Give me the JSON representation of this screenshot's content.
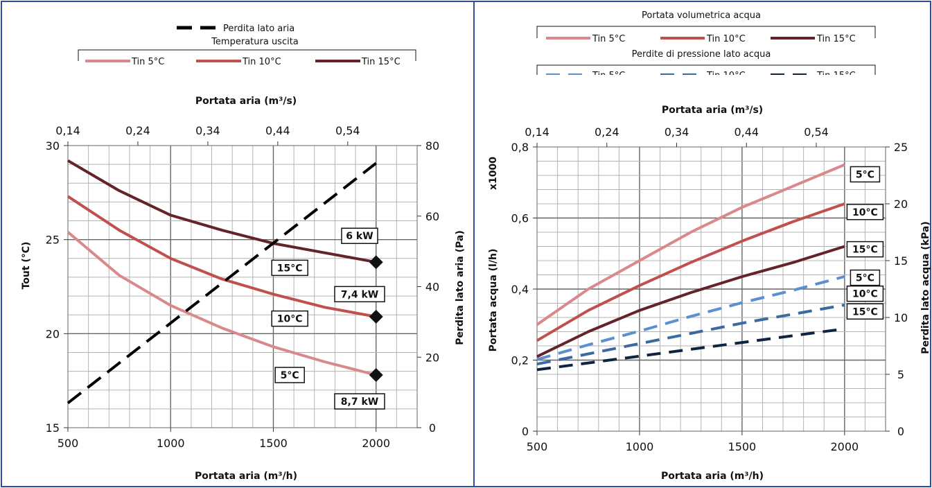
{
  "colors": {
    "frame": "#2f4f9a",
    "grid_minor": "#b3b3b3",
    "grid_major": "#666666",
    "tin5": "#d9898b",
    "tin10": "#c0504d",
    "tin15": "#632328",
    "pressure5": "#5b8fd0",
    "pressure10": "#3b6aa0",
    "pressure15": "#0f2440",
    "airloss": "#000000"
  },
  "chart_data": [
    {
      "type": "line",
      "legend": {
        "airloss_label": "Perdita lato aria",
        "group_title": "Temperatura uscita",
        "items": [
          "Tin 5°C",
          "Tin 10°C",
          "Tin 15°C"
        ]
      },
      "xlabel": "Portata aria (m³/h)",
      "x2label": "Portata aria (m³/s)",
      "ylabel": "Tout (°C)",
      "y2label": "Perdita lato aria (Pa)",
      "xlim": [
        500,
        2200
      ],
      "xticks": [
        "500",
        "1000",
        "1500",
        "2000"
      ],
      "x2ticks": [
        "0,14",
        "0,24",
        "0,34",
        "0,44",
        "0,54"
      ],
      "ylim": [
        15,
        30
      ],
      "yticks": [
        "15",
        "20",
        "25",
        "30"
      ],
      "y2lim": [
        0,
        80
      ],
      "y2ticks": [
        "0",
        "20",
        "40",
        "60",
        "80"
      ],
      "grid": true,
      "series": [
        {
          "name": "Tin 5°C",
          "axis": "y",
          "x": [
            500,
            750,
            1000,
            1250,
            1500,
            1750,
            2000
          ],
          "values": [
            25.4,
            23.1,
            21.5,
            20.3,
            19.3,
            18.5,
            17.8
          ]
        },
        {
          "name": "Tin 10°C",
          "axis": "y",
          "x": [
            500,
            750,
            1000,
            1250,
            1500,
            1750,
            2000
          ],
          "values": [
            27.3,
            25.5,
            24.0,
            22.9,
            22.1,
            21.4,
            20.9
          ]
        },
        {
          "name": "Tin 15°C",
          "axis": "y",
          "x": [
            500,
            750,
            1000,
            1250,
            1500,
            1750,
            2000
          ],
          "values": [
            29.2,
            27.6,
            26.3,
            25.5,
            24.8,
            24.3,
            23.8
          ]
        },
        {
          "name": "Perdita lato aria",
          "axis": "y2",
          "x": [
            500,
            2000
          ],
          "values": [
            7,
            75
          ]
        }
      ],
      "markers": [
        {
          "x": 2000,
          "y": 23.8
        },
        {
          "x": 2000,
          "y": 20.9
        },
        {
          "x": 2000,
          "y": 17.8
        }
      ],
      "annotations": [
        {
          "text": "6 kW",
          "x": 1920,
          "y": 25.2
        },
        {
          "text": "15°C",
          "x": 1580,
          "y": 23.5
        },
        {
          "text": "7,4 kW",
          "x": 1920,
          "y": 22.1
        },
        {
          "text": "10°C",
          "x": 1580,
          "y": 20.8
        },
        {
          "text": "5°C",
          "x": 1580,
          "y": 17.8
        },
        {
          "text": "8,7 kW",
          "x": 1920,
          "y": 16.4
        }
      ]
    },
    {
      "type": "line",
      "legend": {
        "group1_title": "Portata volumetrica acqua",
        "group1_items": [
          "Tin 5°C",
          "Tin 10°C",
          "Tin 15°C"
        ],
        "group2_title": "Perdite di pressione lato acqua",
        "group2_items": [
          "Tin 5°C",
          "Tin 10°C",
          "Tin 15°C"
        ]
      },
      "xlabel": "Portata aria (m³/h)",
      "x2label": "Portata aria (m³/s)",
      "ylabel": "Portata acqua (l/h)",
      "y_multiplier": "x1000",
      "y2label": "Perdita lato acqua (kPa)",
      "xlim": [
        500,
        2200
      ],
      "xticks": [
        "500",
        "1000",
        "1500",
        "2000"
      ],
      "x2ticks": [
        "0,14",
        "0,24",
        "0,34",
        "0,44",
        "0,54"
      ],
      "ylim": [
        0,
        0.8
      ],
      "yticks": [
        "0",
        "0,2",
        "0,4",
        "0,6",
        "0,8"
      ],
      "y2lim": [
        0,
        25
      ],
      "y2ticks": [
        "0",
        "5",
        "10",
        "15",
        "20",
        "25"
      ],
      "grid": true,
      "series": [
        {
          "name": "Tin 5°C",
          "group": "Portata volumetrica acqua",
          "axis": "y",
          "x": [
            500,
            750,
            1000,
            1250,
            1500,
            1750,
            2000
          ],
          "values": [
            0.3,
            0.4,
            0.48,
            0.56,
            0.63,
            0.69,
            0.75
          ]
        },
        {
          "name": "Tin 10°C",
          "group": "Portata volumetrica acqua",
          "axis": "y",
          "x": [
            500,
            750,
            1000,
            1250,
            1500,
            1750,
            2000
          ],
          "values": [
            0.255,
            0.34,
            0.41,
            0.475,
            0.535,
            0.59,
            0.64
          ]
        },
        {
          "name": "Tin 15°C",
          "group": "Portata volumetrica acqua",
          "axis": "y",
          "x": [
            500,
            750,
            1000,
            1250,
            1500,
            1750,
            2000
          ],
          "values": [
            0.21,
            0.28,
            0.34,
            0.39,
            0.435,
            0.475,
            0.52
          ]
        },
        {
          "name": "Tin 5°C",
          "group": "Perdite di pressione lato acqua",
          "axis": "y2",
          "x": [
            500,
            750,
            1000,
            1250,
            1500,
            1750,
            2000
          ],
          "values": [
            6.3,
            7.6,
            8.8,
            10.1,
            11.3,
            12.4,
            13.6
          ]
        },
        {
          "name": "Tin 10°C",
          "group": "Perdite di pressione lato acqua",
          "axis": "y2",
          "x": [
            500,
            750,
            1000,
            1250,
            1500,
            1750,
            2000
          ],
          "values": [
            5.9,
            6.8,
            7.7,
            8.6,
            9.5,
            10.3,
            11.1
          ]
        },
        {
          "name": "Tin 15°C",
          "group": "Perdite di pressione lato acqua",
          "axis": "y2",
          "x": [
            500,
            750,
            1000,
            1250,
            1500,
            1750,
            2000
          ],
          "values": [
            5.4,
            6.0,
            6.6,
            7.2,
            7.8,
            8.4,
            9.0
          ]
        }
      ],
      "annotations": [
        {
          "text": "5°C",
          "x": 2100,
          "y": 0.723
        },
        {
          "text": "10°C",
          "x": 2100,
          "y": 0.617
        },
        {
          "text": "15°C",
          "x": 2100,
          "y": 0.512
        },
        {
          "text": "5°C",
          "x": 2100,
          "y": 0.432
        },
        {
          "text": "10°C",
          "x": 2100,
          "y": 0.387
        },
        {
          "text": "15°C",
          "x": 2100,
          "y": 0.337
        }
      ]
    }
  ]
}
